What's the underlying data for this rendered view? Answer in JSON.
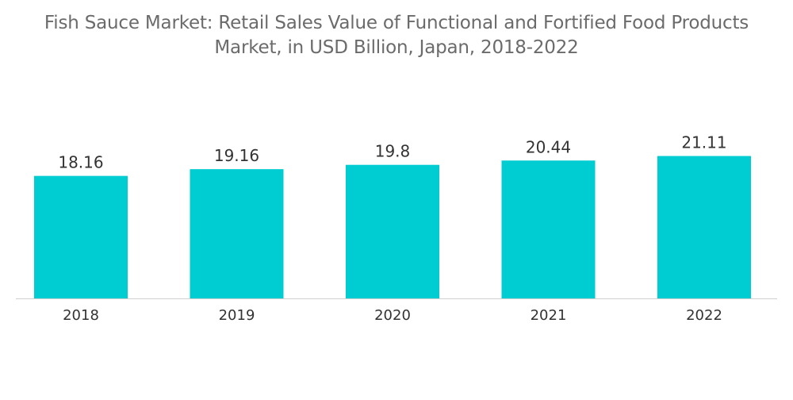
{
  "chart_data": {
    "type": "bar",
    "title": "Fish Sauce Market: Retail Sales Value of Functional and Fortified Food Products Market, in USD Billion, Japan, 2018-2022",
    "categories": [
      "2018",
      "2019",
      "2020",
      "2021",
      "2022"
    ],
    "values": [
      18.16,
      19.16,
      19.8,
      20.44,
      21.11
    ],
    "data_labels": [
      "18.16",
      "19.16",
      "19.8",
      "20.44",
      "21.11"
    ],
    "bar_color": "#00cdd1",
    "axis_color": "#cfcfcf",
    "xlabel": "",
    "ylabel": "",
    "grid": false,
    "legend": "none"
  }
}
